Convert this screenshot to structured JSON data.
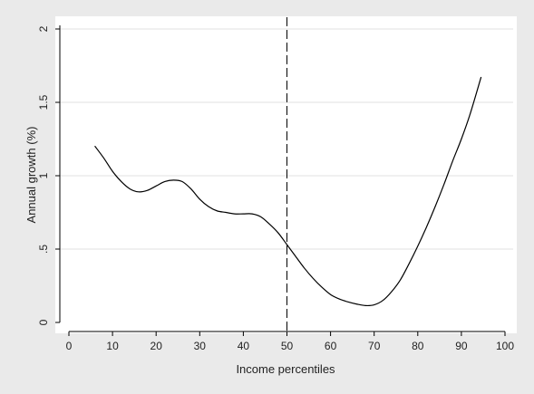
{
  "chart_data": {
    "type": "line",
    "title": "",
    "xlabel": "Income percentiles",
    "ylabel": "Annual growth (%)",
    "xlim": [
      -1,
      102
    ],
    "ylim": [
      -0.04,
      2.05
    ],
    "x_ticks": [
      0,
      10,
      20,
      30,
      40,
      50,
      60,
      70,
      80,
      90,
      100
    ],
    "x_tick_labels": [
      "0",
      "10",
      "20",
      "30",
      "40",
      "50",
      "60",
      "70",
      "80",
      "90",
      "100"
    ],
    "y_ticks": [
      0,
      0.5,
      1,
      1.5,
      2
    ],
    "y_tick_labels": [
      "0",
      ".5",
      "1",
      "1.5",
      "2"
    ],
    "grid": "horizontal",
    "legend": "none",
    "reference_line": {
      "x": 50,
      "style": "dashed"
    },
    "colors": {
      "background": "#eaeaea",
      "plot_background": "#ffffff",
      "line": "#000000",
      "grid": "#e2e2e2",
      "axis": "#000000"
    },
    "series": [
      {
        "x": [
          6,
          8,
          10,
          12,
          14,
          16,
          18,
          20,
          22,
          24,
          26,
          28,
          30,
          32,
          34,
          36,
          38,
          40,
          42,
          44,
          46,
          48,
          50,
          52,
          54,
          56,
          58,
          60,
          62,
          64,
          66,
          68,
          70,
          72,
          74,
          76,
          78,
          80,
          82,
          84,
          86,
          88,
          90,
          92,
          94.5
        ],
        "y": [
          1.2,
          1.12,
          1.03,
          0.96,
          0.91,
          0.89,
          0.9,
          0.93,
          0.96,
          0.97,
          0.96,
          0.91,
          0.84,
          0.79,
          0.76,
          0.75,
          0.74,
          0.74,
          0.74,
          0.72,
          0.67,
          0.61,
          0.53,
          0.45,
          0.37,
          0.3,
          0.24,
          0.19,
          0.16,
          0.14,
          0.125,
          0.115,
          0.12,
          0.15,
          0.21,
          0.29,
          0.4,
          0.52,
          0.65,
          0.79,
          0.94,
          1.1,
          1.25,
          1.42,
          1.67
        ]
      }
    ]
  }
}
